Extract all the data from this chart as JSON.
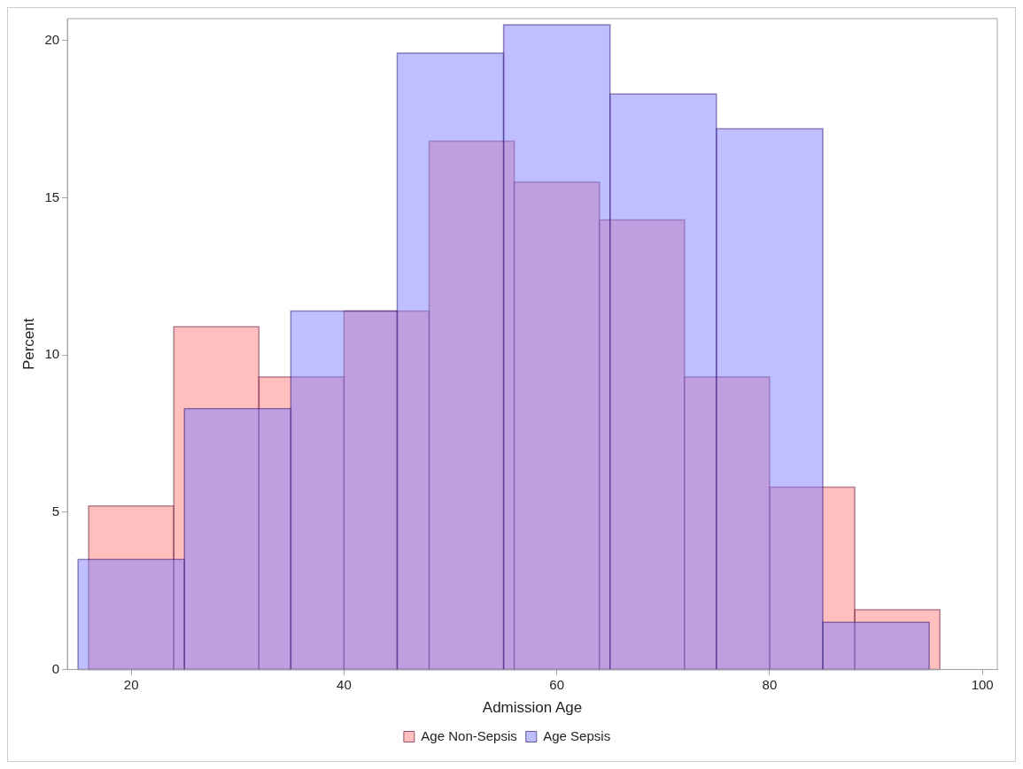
{
  "chart_data": {
    "type": "histogram",
    "xlabel": "Admission Age",
    "ylabel": "Percent",
    "xlim": [
      14,
      101.4
    ],
    "xticks": [
      20,
      40,
      60,
      80,
      100
    ],
    "ylim": [
      0,
      20.7
    ],
    "yticks": [
      0,
      5,
      10,
      15,
      20
    ],
    "grid": false,
    "legend": "bottom",
    "bins": [
      16,
      24,
      32,
      40,
      48,
      56,
      64,
      72,
      80,
      88,
      96
    ],
    "series": [
      {
        "name": "Age Non-Sepsis",
        "color": "#ff8080",
        "values": [
          5.2,
          10.9,
          9.3,
          11.4,
          16.8,
          15.5,
          14.3,
          9.3,
          5.8,
          1.9
        ]
      },
      {
        "name": "Age Sepsis",
        "color": "#8080ff",
        "bins": [
          15,
          25,
          35,
          45,
          55,
          65,
          75,
          85,
          95
        ],
        "values": [
          3.5,
          8.3,
          11.4,
          19.6,
          20.5,
          18.3,
          17.2,
          1.5
        ]
      }
    ]
  }
}
